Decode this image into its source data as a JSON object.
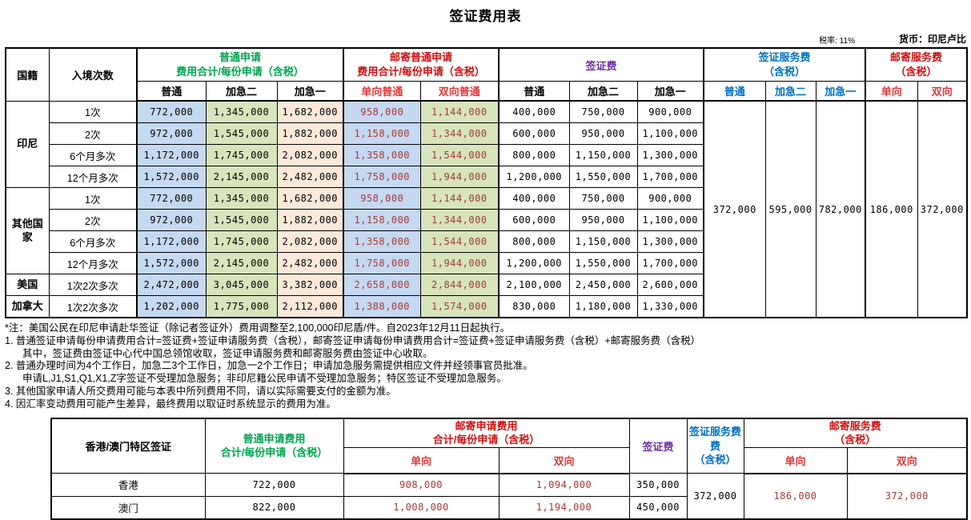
{
  "page": {
    "title": "签证费用表",
    "tax_rate": "税率: 11%",
    "currency": "货币：印尼卢比"
  },
  "colors": {
    "green": "#00A550",
    "red": "#CC1111",
    "red_light": "#DD3A3A",
    "purple": "#7030A0",
    "blue": "#0070C0",
    "dark_red": "#A93939",
    "cell_blue": "#C5D9F1",
    "cell_green": "#D7E4BC",
    "cell_peach": "#FDE9D9"
  },
  "main_table": {
    "corner": [
      "国籍",
      "入境次数"
    ],
    "groups": [
      {
        "label": "普通申请\n费用合计/每份申请（含税）",
        "subs": [
          "普通",
          "加急二",
          "加急一"
        ]
      },
      {
        "label": "邮寄普通申请\n费用合计/每份申请（含税）",
        "subs": [
          "单向普通",
          "双向普通"
        ]
      },
      {
        "label": "签证费",
        "subs": [
          "普通",
          "加急二",
          "加急一"
        ]
      },
      {
        "label": "签证服务费\n（含税）",
        "subs": [
          "普通",
          "加急二",
          "加急一"
        ]
      },
      {
        "label": "邮寄服务费\n（含税）",
        "subs": [
          "单向",
          "双向"
        ]
      }
    ],
    "rows": [
      {
        "nationality": "印尼",
        "rowspan": 4,
        "entries": "1次",
        "normal": [
          "772,000",
          "1,345,000",
          "1,682,000"
        ],
        "mail": [
          "958,000",
          "1,144,000"
        ],
        "visa_fee": [
          "400,000",
          "750,000",
          "900,000"
        ]
      },
      {
        "entries": "2次",
        "normal": [
          "972,000",
          "1,545,000",
          "1,882,000"
        ],
        "mail": [
          "1,158,000",
          "1,344,000"
        ],
        "visa_fee": [
          "600,000",
          "950,000",
          "1,100,000"
        ]
      },
      {
        "entries": "6个月多次",
        "normal": [
          "1,172,000",
          "1,745,000",
          "2,082,000"
        ],
        "mail": [
          "1,358,000",
          "1,544,000"
        ],
        "visa_fee": [
          "800,000",
          "1,150,000",
          "1,300,000"
        ]
      },
      {
        "entries": "12个月多次",
        "normal": [
          "1,572,000",
          "2,145,000",
          "2,482,000"
        ],
        "mail": [
          "1,758,000",
          "1,944,000"
        ],
        "visa_fee": [
          "1,200,000",
          "1,550,000",
          "1,700,000"
        ]
      },
      {
        "nationality": "其他国家",
        "rowspan": 4,
        "entries": "1次",
        "normal": [
          "772,000",
          "1,345,000",
          "1,682,000"
        ],
        "mail": [
          "958,000",
          "1,144,000"
        ],
        "visa_fee": [
          "400,000",
          "750,000",
          "900,000"
        ]
      },
      {
        "entries": "2次",
        "normal": [
          "972,000",
          "1,545,000",
          "1,882,000"
        ],
        "mail": [
          "1,158,000",
          "1,344,000"
        ],
        "visa_fee": [
          "600,000",
          "950,000",
          "1,100,000"
        ]
      },
      {
        "entries": "6个月多次",
        "normal": [
          "1,172,000",
          "1,745,000",
          "2,082,000"
        ],
        "mail": [
          "1,358,000",
          "1,544,000"
        ],
        "visa_fee": [
          "800,000",
          "1,150,000",
          "1,300,000"
        ]
      },
      {
        "entries": "12个月多次",
        "normal": [
          "1,572,000",
          "2,145,000",
          "2,482,000"
        ],
        "mail": [
          "1,758,000",
          "1,944,000"
        ],
        "visa_fee": [
          "1,200,000",
          "1,550,000",
          "1,700,000"
        ]
      },
      {
        "nationality": "美国",
        "rowspan": 1,
        "entries": "1次2次多次",
        "normal": [
          "2,472,000",
          "3,045,000",
          "3,382,000"
        ],
        "mail": [
          "2,658,000",
          "2,844,000"
        ],
        "visa_fee": [
          "2,100,000",
          "2,450,000",
          "2,600,000"
        ]
      },
      {
        "nationality": "加拿大",
        "rowspan": 1,
        "entries": "1次2次多次",
        "normal": [
          "1,202,000",
          "1,775,000",
          "2,112,000"
        ],
        "mail": [
          "1,388,000",
          "1,574,000"
        ],
        "visa_fee": [
          "830,000",
          "1,180,000",
          "1,330,000"
        ]
      }
    ],
    "visa_service_fees": [
      "372,000",
      "595,000",
      "782,000"
    ],
    "mail_service_fees": [
      "186,000",
      "372,000"
    ]
  },
  "notes": [
    {
      "indent": false,
      "text": "*注：美国公民在印尼申请赴华签证（除记者签证外）费用调整至2,100,000印尼盾/件。自2023年12月11日起执行。"
    },
    {
      "indent": false,
      "text": "1.  普通签证申请每份申请费用合计=签证费+签证申请服务费（含税），邮寄签证申请每份申请费用合计=签证费+签证申请服务费（含税）+邮寄服务费（含税）"
    },
    {
      "indent": true,
      "text": "其中，签证费由签证中心代中国总领馆收取，签证申请服务费和邮寄服务费由签证中心收取。"
    },
    {
      "indent": false,
      "text": "2.  普通办理时间为4个工作日，加急二3个工作日，加急一2个工作日；申请加急服务需提供相应文件并经领事官员批准。"
    },
    {
      "indent": true,
      "text": "申请L,J1,S1,Q1,X1,Z字签证不受理加急服务；非印尼籍公民申请不受理加急服务；特区签证不受理加急服务。"
    },
    {
      "indent": false,
      "text": "3.  其他国家申请人所交费用可能与本表中所列费用不同，请以实际需要支付的金额为准。"
    },
    {
      "indent": false,
      "text": "4.  因汇率变动费用可能产生差异，最终费用以取证时系统显示的费用为准。"
    }
  ],
  "bottom_table": {
    "col1_header": "香港/澳门特区签证",
    "normal_header": "普通申请费用\n合计/每份申请（含税）",
    "mail_apply_header": "邮寄申请费用\n合计/每份申请（含税）",
    "mail_subs": [
      "单向",
      "双向"
    ],
    "visa_fee_header": "签证费",
    "service_header": "签证服务费\n费\n（含税）",
    "mail_service_header": "邮寄服务费\n（含税）",
    "mail_service_subs": [
      "单向",
      "双向"
    ],
    "rows": [
      {
        "region": "香港",
        "normal": "722,000",
        "mail_one": "908,000",
        "mail_two": "1,094,000",
        "visa_fee": "350,000"
      },
      {
        "region": "澳门",
        "normal": "822,000",
        "mail_one": "1,008,000",
        "mail_two": "1,194,000",
        "visa_fee": "450,000"
      }
    ],
    "service_fee": "372,000",
    "mail_service_fees": [
      "186,000",
      "372,000"
    ]
  }
}
